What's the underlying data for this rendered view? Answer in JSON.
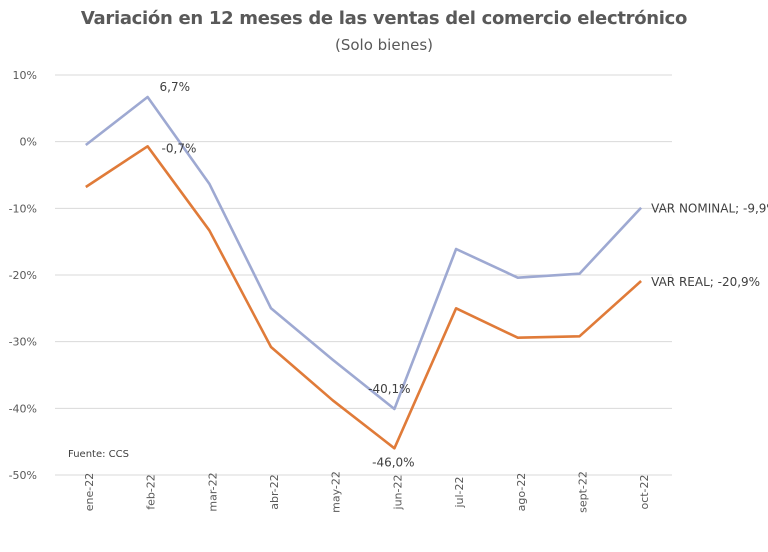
{
  "chart_data": {
    "type": "line",
    "title": "Variación en 12 meses de las ventas del comercio electrónico",
    "subtitle": "(Solo bienes)",
    "categories": [
      "ene-22",
      "feb-22",
      "mar-22",
      "abr-22",
      "may-22",
      "jun-22",
      "jul-22",
      "ago-22",
      "sept-22",
      "oct-22"
    ],
    "y_ticks": [
      "10%",
      "0%",
      "-10%",
      "-20%",
      "-30%",
      "-40%",
      "-50%"
    ],
    "ylim": [
      -50,
      10
    ],
    "grid": "horizontal",
    "source": "Fuente: CCS",
    "series": [
      {
        "name": "VAR NOMINAL",
        "color": "#9ea9d2",
        "values": [
          -0.5,
          6.7,
          -6.3,
          -25.0,
          -32.7,
          -40.1,
          -16.1,
          -20.4,
          -19.8,
          -9.9
        ],
        "end_label": "VAR NOMINAL; -9,9%",
        "point_labels": [
          {
            "index": 1,
            "text": "6,7%"
          },
          {
            "index": 5,
            "text": "-40,1%"
          }
        ]
      },
      {
        "name": "VAR REAL",
        "color": "#e07b39",
        "values": [
          -6.8,
          -0.7,
          -13.3,
          -30.8,
          -38.8,
          -46.0,
          -25.0,
          -29.4,
          -29.2,
          -20.9
        ],
        "end_label": "VAR REAL; -20,9%",
        "point_labels": [
          {
            "index": 1,
            "text": "-0,7%"
          },
          {
            "index": 5,
            "text": "-46,0%"
          }
        ]
      }
    ]
  }
}
